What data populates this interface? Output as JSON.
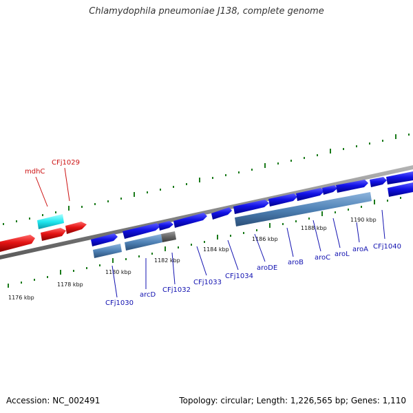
{
  "title": "Chlamydophila pneumoniae J138, complete genome",
  "footer": {
    "accession": "Accession: NC_002491",
    "summary": "Topology: circular; Length: 1,226,565 bp; Genes: 1,110"
  },
  "colors": {
    "forward_gene": "#0b0bdc",
    "reverse_gene": "#e01010",
    "rna": "#2ee6ee",
    "cds_bar": "#4f82b6",
    "cds_bar_grey": "#666666",
    "tick": "#1a7a1a",
    "backbone": "#8a8a8a",
    "label_forward": "#1010b0",
    "label_reverse": "#cc1010"
  },
  "scale_labels": [
    {
      "label": "1176 kbp",
      "kbp": 1176
    },
    {
      "label": "1178 kbp",
      "kbp": 1178
    },
    {
      "label": "1180 kbp",
      "kbp": 1180
    },
    {
      "label": "1182 kbp",
      "kbp": 1182
    },
    {
      "label": "1184 kbp",
      "kbp": 1184
    },
    {
      "label": "1186 kbp",
      "kbp": 1186
    },
    {
      "label": "1188 kbp",
      "kbp": 1188
    },
    {
      "label": "1190 kbp",
      "kbp": 1190
    }
  ],
  "reverse_gene_labels": [
    "mdhC",
    "CFj1029"
  ],
  "forward_gene_labels": [
    "CFj1030",
    "arcD",
    "CFj1032",
    "CFj1033",
    "CFj1034",
    "aroDE",
    "aroB",
    "aroC",
    "aroL",
    "aroA",
    "CFj1040"
  ]
}
